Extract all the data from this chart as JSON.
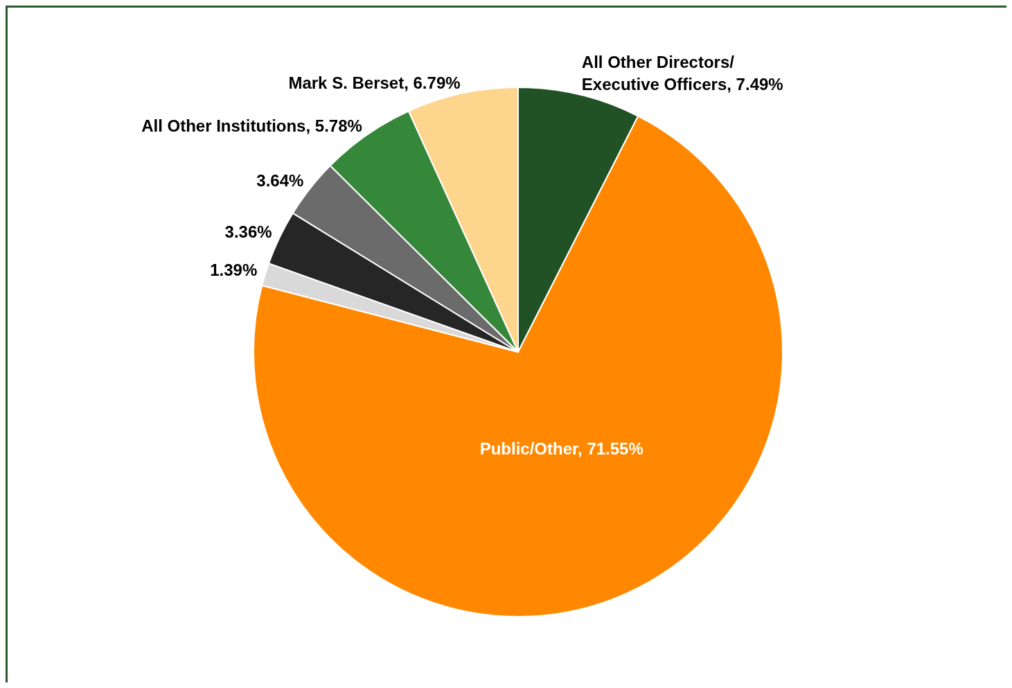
{
  "chart_data": {
    "type": "pie",
    "categories": [
      "All Other Directors/\nExecutive Officers",
      "Public/Other",
      null,
      null,
      null,
      "All Other Institutions",
      "Mark S. Berset"
    ],
    "values": [
      7.49,
      71.55,
      1.39,
      3.36,
      3.64,
      5.78,
      6.79
    ],
    "colors": [
      "#215226",
      "#ff8800",
      "#d9d9d9",
      "#262626",
      "#6b6b6b",
      "#35873a",
      "#fdd58c"
    ],
    "value_labels": [
      "7.49%",
      "71.55%",
      "1.39%",
      "3.36%",
      "3.64%",
      "5.78%",
      "6.79%"
    ]
  }
}
